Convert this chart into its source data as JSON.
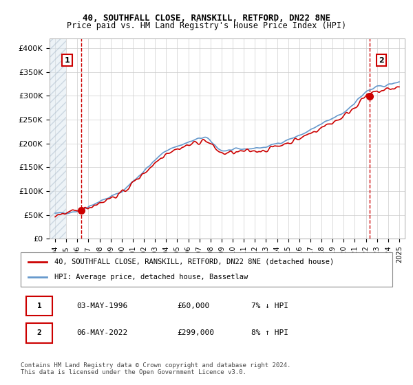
{
  "title_line1": "40, SOUTHFALL CLOSE, RANSKILL, RETFORD, DN22 8NE",
  "title_line2": "Price paid vs. HM Land Registry's House Price Index (HPI)",
  "ylabel": "",
  "xlim_start": 1993.5,
  "xlim_end": 2025.5,
  "ylim": [
    0,
    420000
  ],
  "yticks": [
    0,
    50000,
    100000,
    150000,
    200000,
    250000,
    300000,
    350000,
    400000
  ],
  "ytick_labels": [
    "£0",
    "£50K",
    "£100K",
    "£150K",
    "£200K",
    "£250K",
    "£300K",
    "£350K",
    "£400K"
  ],
  "sale1_date": 1996.35,
  "sale1_price": 60000,
  "sale1_label": "1",
  "sale2_date": 2022.35,
  "sale2_price": 299000,
  "sale2_label": "2",
  "hpi_color": "#6699cc",
  "price_color": "#cc0000",
  "dashed_line_color": "#cc0000",
  "hatch_color": "#ccddee",
  "background_color": "#ffffff",
  "grid_color": "#cccccc",
  "legend_entries": [
    "40, SOUTHFALL CLOSE, RANSKILL, RETFORD, DN22 8NE (detached house)",
    "HPI: Average price, detached house, Bassetlaw"
  ],
  "table_rows": [
    [
      "1",
      "03-MAY-1996",
      "£60,000",
      "7% ↓ HPI"
    ],
    [
      "2",
      "06-MAY-2022",
      "£299,000",
      "8% ↑ HPI"
    ]
  ],
  "footnote": "Contains HM Land Registry data © Crown copyright and database right 2024.\nThis data is licensed under the Open Government Licence v3.0.",
  "xtick_years": [
    1994,
    1995,
    1996,
    1997,
    1998,
    1999,
    2000,
    2001,
    2002,
    2003,
    2004,
    2005,
    2006,
    2007,
    2008,
    2009,
    2010,
    2011,
    2012,
    2013,
    2014,
    2015,
    2016,
    2017,
    2018,
    2019,
    2020,
    2021,
    2022,
    2023,
    2024,
    2025
  ]
}
